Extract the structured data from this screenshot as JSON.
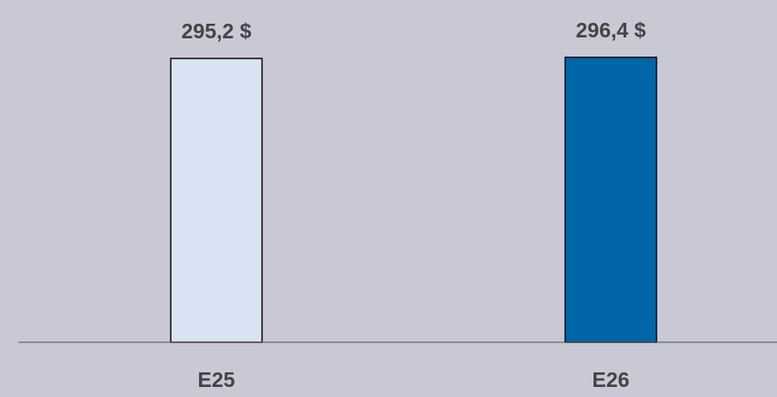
{
  "chart_data": {
    "type": "bar",
    "categories": [
      "E25",
      "E26"
    ],
    "values": [
      295.2,
      296.4
    ],
    "value_labels": [
      "295,2 $",
      "296,4 $"
    ],
    "colors": [
      "#d9e3f3",
      "#0066a8"
    ],
    "ylim": [
      0,
      300
    ]
  }
}
